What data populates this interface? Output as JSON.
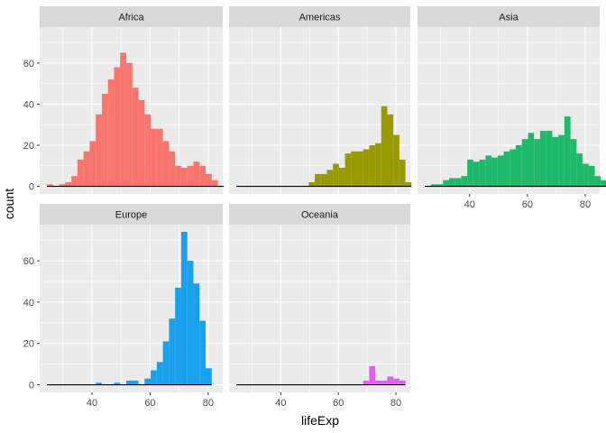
{
  "chart_data": {
    "type": "bar",
    "subtype": "faceted-histogram",
    "xlabel": "lifeExp",
    "ylabel": "count",
    "xlim": [
      22,
      85
    ],
    "ylim": [
      -3.7,
      77.5
    ],
    "bin_width": 2.1,
    "x_ticks": [
      40,
      60,
      80
    ],
    "y_ticks": [
      0,
      20,
      40,
      60
    ],
    "baseline_color": "#000000",
    "facets": [
      {
        "name": "Africa",
        "color": "#F8766D",
        "bin_start": 24.5,
        "counts": [
          1,
          0,
          1,
          2,
          5,
          13,
          17,
          22,
          35,
          45,
          52,
          58,
          65,
          60,
          48,
          42,
          35,
          28,
          28,
          22,
          17,
          10,
          9,
          10,
          12,
          10,
          6,
          3,
          0
        ]
      },
      {
        "name": "Americas",
        "color": "#999900",
        "bin_start": 24.5,
        "counts": [
          0,
          0,
          0,
          0,
          0,
          0,
          0,
          0,
          0,
          0,
          0,
          0,
          2,
          6,
          6,
          8,
          11,
          9,
          16,
          17,
          17,
          18,
          20,
          21,
          39,
          35,
          25,
          13,
          2
        ]
      },
      {
        "name": "Asia",
        "color": "#1DBA6A",
        "bin_start": 24.5,
        "counts": [
          0,
          1,
          1,
          3,
          4,
          4,
          5,
          13,
          12,
          13,
          15,
          14,
          15,
          17,
          18,
          20,
          23,
          26,
          23,
          27,
          27,
          24,
          25,
          34,
          23,
          16,
          11,
          10,
          5,
          3
        ]
      },
      {
        "name": "Europe",
        "color": "#1AA1EE",
        "bin_start": 24.5,
        "counts": [
          0,
          0,
          0,
          0,
          0,
          0,
          0,
          0,
          1,
          0,
          0,
          1,
          0,
          2,
          2,
          0,
          3,
          7,
          11,
          21,
          32,
          47,
          74,
          60,
          49,
          31,
          8
        ]
      },
      {
        "name": "Oceania",
        "color": "#E95BF6",
        "bin_start": 24.5,
        "counts": [
          0,
          0,
          0,
          0,
          0,
          0,
          0,
          0,
          0,
          0,
          0,
          0,
          0,
          0,
          0,
          0,
          0,
          0,
          0,
          0,
          0,
          2,
          9,
          2,
          2,
          4,
          3,
          2
        ]
      }
    ]
  }
}
